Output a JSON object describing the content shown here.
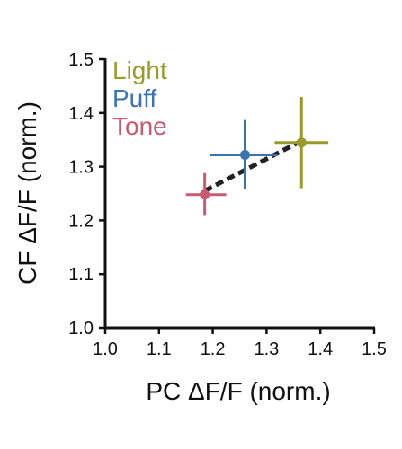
{
  "chart_data": {
    "type": "scatter",
    "title": "",
    "xlabel": "PC ΔF/F (norm.)",
    "ylabel": "CF ΔF/F (norm.)",
    "xlim": [
      1.0,
      1.5
    ],
    "ylim": [
      1.0,
      1.5
    ],
    "xticks": [
      "1.0",
      "1.1",
      "1.2",
      "1.3",
      "1.4",
      "1.5"
    ],
    "yticks": [
      "1.0",
      "1.1",
      "1.2",
      "1.3",
      "1.4",
      "1.5"
    ],
    "grid": false,
    "legend_position": "top-left",
    "series": [
      {
        "name": "Light",
        "color": "#9a9a2e",
        "x": 1.365,
        "y": 1.345,
        "x_err": [
          1.315,
          1.415
        ],
        "y_err": [
          1.26,
          1.43
        ]
      },
      {
        "name": "Puff",
        "color": "#3d73ad",
        "x": 1.26,
        "y": 1.322,
        "x_err": [
          1.195,
          1.32
        ],
        "y_err": [
          1.258,
          1.387
        ]
      },
      {
        "name": "Tone",
        "color": "#c75b72",
        "x": 1.185,
        "y": 1.248,
        "x_err": [
          1.15,
          1.225
        ],
        "y_err": [
          1.21,
          1.288
        ]
      }
    ],
    "fit_line": {
      "style": "dashed",
      "color": "#222222",
      "x": [
        1.185,
        1.365
      ],
      "y": [
        1.255,
        1.348
      ]
    }
  }
}
